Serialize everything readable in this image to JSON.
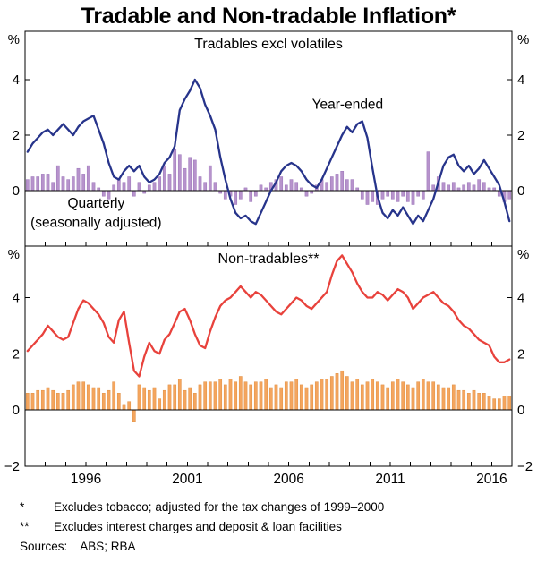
{
  "title": "Tradable and Non-tradable Inflation*",
  "footnotes": [
    {
      "marker": "*",
      "text": "Excludes tobacco; adjusted for the tax changes of 1999–2000"
    },
    {
      "marker": "**",
      "text": "Excludes interest charges and deposit & loan facilities"
    }
  ],
  "sources_label": "Sources:",
  "sources": "ABS; RBA",
  "colors": {
    "tradables_line": "#27348b",
    "tradables_bars": "#b793cc",
    "tradables_bars_edge": "#9a74b8",
    "nontradables_line": "#e8423c",
    "nontradables_bars": "#f4a55e",
    "nontradables_bars_edge": "#df8f43",
    "axis": "#000000"
  },
  "chart_data": {
    "type": "line+bar",
    "frequency": "quarterly",
    "x_start": 1993,
    "x_step": 0.25,
    "xlim": [
      1993,
      2017
    ],
    "xticks_labeled": [
      1996,
      2001,
      2006,
      2011,
      2016
    ],
    "panels": [
      {
        "title": "Tradables excl volatiles",
        "unit": "%",
        "ylim": [
          -2,
          5.74
        ],
        "yticks": [
          0,
          2,
          4
        ],
        "annotations": [
          {
            "text": "Year-ended",
            "x": 2008.9,
            "y": 2.95,
            "color": "#27348b"
          },
          {
            "text": "Quarterly",
            "x": 1996.5,
            "y": -0.62,
            "color": "#a97cc2"
          },
          {
            "text": "(seasonally adjusted)",
            "x": 1996.5,
            "y": -1.3,
            "color": "#a97cc2"
          }
        ],
        "series": [
          {
            "name": "Quarterly (seasonally adjusted)",
            "type": "bar",
            "color": "#b793cc",
            "edge": "#9a74b8",
            "values": [
              0.4,
              0.5,
              0.5,
              0.6,
              0.6,
              0.3,
              0.9,
              0.5,
              0.4,
              0.5,
              0.8,
              0.6,
              0.9,
              0.3,
              0.1,
              -0.2,
              -0.3,
              0.2,
              0.4,
              0.3,
              0.5,
              -0.2,
              0.3,
              -0.1,
              0.2,
              0.3,
              0.5,
              0.9,
              0.6,
              1.5,
              1.3,
              0.8,
              1.2,
              1.1,
              0.5,
              0.3,
              0.9,
              0.3,
              -0.1,
              -0.3,
              -0.2,
              -0.5,
              -0.3,
              0.1,
              -0.4,
              -0.2,
              0.2,
              0.1,
              0.3,
              0.4,
              0.5,
              0.2,
              0.4,
              0.3,
              0.1,
              -0.2,
              -0.1,
              0.2,
              0.4,
              0.3,
              0.5,
              0.6,
              0.7,
              0.4,
              0.4,
              0.1,
              -0.3,
              -0.5,
              -0.4,
              -0.5,
              -0.3,
              -0.2,
              -0.3,
              -0.4,
              -0.2,
              -0.4,
              -0.5,
              -0.2,
              -0.3,
              1.4,
              0.2,
              0.5,
              0.3,
              0.2,
              0.3,
              0.1,
              0.2,
              0.3,
              0.2,
              0.4,
              0.3,
              0.1,
              0.1,
              -0.2,
              -0.4,
              -0.3
            ]
          },
          {
            "name": "Year-ended",
            "type": "line",
            "color": "#27348b",
            "values": [
              1.4,
              1.7,
              1.9,
              2.1,
              2.2,
              2.0,
              2.2,
              2.4,
              2.2,
              2.0,
              2.3,
              2.5,
              2.6,
              2.7,
              2.2,
              1.7,
              1.0,
              0.5,
              0.4,
              0.7,
              0.9,
              0.7,
              0.9,
              0.5,
              0.3,
              0.4,
              0.6,
              1.0,
              1.2,
              1.6,
              2.9,
              3.3,
              3.6,
              4.0,
              3.7,
              3.1,
              2.7,
              2.2,
              1.2,
              0.4,
              -0.3,
              -0.8,
              -1.0,
              -0.9,
              -1.1,
              -1.2,
              -0.8,
              -0.4,
              0.0,
              0.3,
              0.7,
              0.9,
              1.0,
              0.9,
              0.7,
              0.4,
              0.2,
              0.1,
              0.4,
              0.8,
              1.2,
              1.6,
              2.0,
              2.3,
              2.1,
              2.4,
              2.5,
              1.9,
              0.8,
              -0.2,
              -0.8,
              -1.0,
              -0.7,
              -0.9,
              -0.6,
              -0.9,
              -1.2,
              -0.9,
              -1.1,
              -0.7,
              -0.3,
              0.3,
              0.9,
              1.2,
              1.3,
              0.9,
              0.7,
              0.9,
              0.6,
              0.8,
              1.1,
              0.8,
              0.5,
              0.2,
              -0.4,
              -1.1
            ]
          }
        ]
      },
      {
        "title": "Non-tradables**",
        "unit": "%",
        "ylim": [
          -2,
          5.83
        ],
        "yticks": [
          -2,
          0,
          2,
          4
        ],
        "annotations": [],
        "series": [
          {
            "name": "Quarterly",
            "type": "bar",
            "color": "#f4a55e",
            "edge": "#df8f43",
            "values": [
              0.6,
              0.6,
              0.7,
              0.7,
              0.8,
              0.7,
              0.6,
              0.6,
              0.7,
              0.9,
              1.0,
              1.0,
              0.9,
              0.8,
              0.8,
              0.6,
              0.7,
              1.0,
              0.6,
              0.2,
              0.3,
              -0.4,
              0.9,
              0.8,
              0.7,
              0.8,
              0.4,
              0.7,
              0.9,
              0.9,
              1.1,
              0.7,
              0.8,
              0.6,
              0.9,
              1.0,
              1.0,
              1.0,
              1.1,
              0.9,
              1.1,
              1.0,
              1.2,
              1.0,
              0.9,
              1.0,
              1.0,
              1.1,
              0.8,
              0.9,
              0.8,
              1.0,
              1.0,
              1.1,
              0.9,
              0.8,
              0.9,
              1.0,
              1.1,
              1.1,
              1.2,
              1.3,
              1.4,
              1.2,
              1.0,
              1.1,
              0.9,
              1.0,
              1.1,
              1.0,
              0.9,
              0.8,
              1.0,
              1.1,
              1.0,
              0.9,
              0.8,
              1.0,
              1.1,
              1.0,
              1.0,
              0.9,
              0.8,
              0.8,
              0.9,
              0.7,
              0.7,
              0.6,
              0.7,
              0.6,
              0.6,
              0.5,
              0.4,
              0.4,
              0.5,
              0.5
            ]
          },
          {
            "name": "Year-ended",
            "type": "line",
            "color": "#e8423c",
            "values": [
              2.1,
              2.3,
              2.5,
              2.7,
              3.0,
              2.8,
              2.6,
              2.5,
              2.6,
              3.1,
              3.6,
              3.9,
              3.8,
              3.6,
              3.4,
              3.1,
              2.6,
              2.4,
              3.2,
              3.5,
              2.4,
              1.4,
              1.2,
              1.9,
              2.4,
              2.1,
              2.0,
              2.5,
              2.7,
              3.1,
              3.5,
              3.6,
              3.2,
              2.7,
              2.3,
              2.2,
              2.8,
              3.3,
              3.7,
              3.9,
              4.0,
              4.2,
              4.4,
              4.2,
              4.0,
              4.2,
              4.1,
              3.9,
              3.7,
              3.5,
              3.4,
              3.6,
              3.8,
              4.0,
              3.9,
              3.7,
              3.6,
              3.8,
              4.0,
              4.2,
              4.8,
              5.3,
              5.5,
              5.2,
              4.9,
              4.5,
              4.2,
              4.0,
              4.0,
              4.2,
              4.1,
              3.9,
              4.1,
              4.3,
              4.2,
              4.0,
              3.6,
              3.8,
              4.0,
              4.1,
              4.2,
              4.0,
              3.8,
              3.7,
              3.5,
              3.2,
              3.0,
              2.9,
              2.7,
              2.5,
              2.4,
              2.3,
              1.9,
              1.7,
              1.7,
              1.8
            ]
          }
        ]
      }
    ]
  }
}
